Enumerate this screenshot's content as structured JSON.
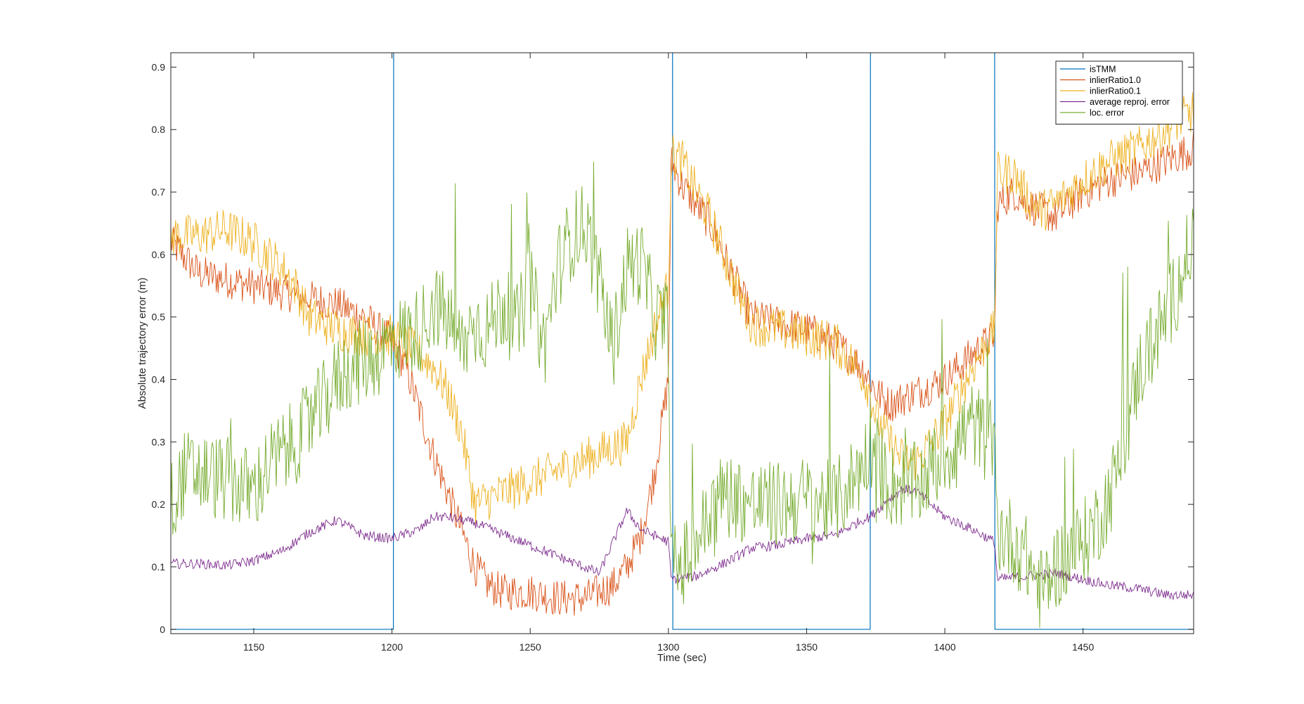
{
  "chart_data": {
    "type": "line",
    "title": "",
    "xlabel": "Time (sec)",
    "ylabel": "Absolute trajectory error (m)",
    "xlim": [
      1120,
      1490
    ],
    "ylim": [
      -0.007,
      0.923
    ],
    "xticks": [
      1150,
      1200,
      1250,
      1300,
      1350,
      1400,
      1450
    ],
    "yticks": [
      0,
      0.1,
      0.2,
      0.3,
      0.4,
      0.5,
      0.6,
      0.7,
      0.8,
      0.9
    ],
    "ytick_labels": [
      "0",
      "0.1",
      "0.2",
      "0.3",
      "0.4",
      "0.5",
      "0.6",
      "0.7",
      "0.8",
      "0.9"
    ],
    "grid": false,
    "legend_position": "top-right",
    "series": [
      {
        "name": "isTMM",
        "color": "#0072BD",
        "x": [
          1120,
          1200.5,
          1200.6,
          1301.5,
          1301.6,
          1373,
          1373.1,
          1418,
          1418.1,
          1490
        ],
        "y": [
          0,
          0,
          1,
          1,
          0,
          0,
          1,
          1,
          0,
          0
        ]
      },
      {
        "name": "inlierRatio1.0",
        "color": "#D95319",
        "x": [
          1120,
          1130,
          1140,
          1150,
          1160,
          1170,
          1180,
          1190,
          1200,
          1205,
          1210,
          1215,
          1220,
          1225,
          1230,
          1235,
          1240,
          1250,
          1260,
          1270,
          1275,
          1280,
          1285,
          1290,
          1295,
          1300,
          1301,
          1305,
          1310,
          1315,
          1320,
          1325,
          1330,
          1340,
          1350,
          1360,
          1370,
          1373,
          1375,
          1380,
          1390,
          1400,
          1410,
          1418,
          1419,
          1425,
          1430,
          1435,
          1440,
          1450,
          1460,
          1470,
          1480,
          1490
        ],
        "y": [
          0.62,
          0.57,
          0.56,
          0.55,
          0.54,
          0.53,
          0.52,
          0.5,
          0.46,
          0.42,
          0.35,
          0.28,
          0.22,
          0.16,
          0.1,
          0.07,
          0.06,
          0.06,
          0.05,
          0.05,
          0.06,
          0.07,
          0.1,
          0.15,
          0.25,
          0.4,
          0.75,
          0.71,
          0.68,
          0.65,
          0.6,
          0.55,
          0.5,
          0.49,
          0.48,
          0.46,
          0.42,
          0.4,
          0.38,
          0.36,
          0.38,
          0.4,
          0.44,
          0.47,
          0.68,
          0.7,
          0.68,
          0.67,
          0.66,
          0.7,
          0.72,
          0.73,
          0.75,
          0.77
        ]
      },
      {
        "name": "inlierRatio0.1",
        "color": "#EDB120",
        "x": [
          1120,
          1130,
          1140,
          1150,
          1160,
          1165,
          1170,
          1180,
          1190,
          1200,
          1210,
          1215,
          1220,
          1225,
          1230,
          1285,
          1290,
          1295,
          1300,
          1301,
          1305,
          1310,
          1315,
          1320,
          1325,
          1330,
          1340,
          1350,
          1360,
          1370,
          1373,
          1375,
          1380,
          1385,
          1390,
          1400,
          1410,
          1418,
          1419,
          1425,
          1430,
          1435,
          1440,
          1450,
          1460,
          1470,
          1480,
          1490
        ],
        "y": [
          0.63,
          0.63,
          0.64,
          0.62,
          0.58,
          0.55,
          0.5,
          0.48,
          0.47,
          0.47,
          0.44,
          0.42,
          0.38,
          0.32,
          0.2,
          0.3,
          0.4,
          0.48,
          0.55,
          0.76,
          0.75,
          0.7,
          0.66,
          0.6,
          0.54,
          0.49,
          0.48,
          0.47,
          0.46,
          0.41,
          0.38,
          0.34,
          0.3,
          0.27,
          0.27,
          0.33,
          0.42,
          0.48,
          0.73,
          0.73,
          0.69,
          0.67,
          0.68,
          0.72,
          0.75,
          0.77,
          0.8,
          0.83
        ]
      },
      {
        "name": "average reproj. error",
        "color": "#7E2F8E",
        "x": [
          1120,
          1130,
          1140,
          1150,
          1160,
          1170,
          1180,
          1190,
          1200,
          1210,
          1215,
          1220,
          1230,
          1275,
          1285,
          1290,
          1295,
          1300,
          1301,
          1310,
          1320,
          1330,
          1340,
          1350,
          1360,
          1370,
          1373,
          1380,
          1385,
          1390,
          1400,
          1410,
          1418,
          1419,
          1430,
          1440,
          1450,
          1460,
          1470,
          1480,
          1490
        ],
        "y": [
          0.105,
          0.105,
          0.102,
          0.11,
          0.125,
          0.155,
          0.175,
          0.15,
          0.145,
          0.16,
          0.18,
          0.18,
          0.17,
          0.09,
          0.19,
          0.16,
          0.15,
          0.14,
          0.08,
          0.085,
          0.105,
          0.13,
          0.135,
          0.145,
          0.15,
          0.175,
          0.18,
          0.21,
          0.225,
          0.22,
          0.18,
          0.16,
          0.14,
          0.08,
          0.085,
          0.09,
          0.08,
          0.07,
          0.065,
          0.055,
          0.055
        ]
      },
      {
        "name": "loc. error",
        "color": "#77AC30",
        "x": [
          1120,
          1125,
          1130,
          1140,
          1150,
          1155,
          1160,
          1165,
          1170,
          1175,
          1180,
          1185,
          1190,
          1195,
          1200,
          1205,
          1210,
          1215,
          1220,
          1225,
          1230,
          1235,
          1240,
          1245,
          1250,
          1255,
          1260,
          1265,
          1270,
          1275,
          1280,
          1285,
          1290,
          1295,
          1300,
          1301,
          1305,
          1310,
          1315,
          1320,
          1330,
          1340,
          1350,
          1360,
          1370,
          1373,
          1380,
          1390,
          1400,
          1410,
          1418,
          1419,
          1425,
          1430,
          1435,
          1440,
          1445,
          1450,
          1455,
          1460,
          1465,
          1470,
          1475,
          1480,
          1485,
          1490
        ],
        "y": [
          0.2,
          0.25,
          0.25,
          0.24,
          0.22,
          0.26,
          0.28,
          0.3,
          0.33,
          0.36,
          0.4,
          0.42,
          0.43,
          0.44,
          0.46,
          0.47,
          0.48,
          0.52,
          0.5,
          0.45,
          0.49,
          0.48,
          0.52,
          0.48,
          0.55,
          0.45,
          0.58,
          0.63,
          0.65,
          0.55,
          0.45,
          0.58,
          0.59,
          0.5,
          0.49,
          0.1,
          0.1,
          0.14,
          0.18,
          0.22,
          0.2,
          0.2,
          0.21,
          0.2,
          0.26,
          0.3,
          0.23,
          0.23,
          0.28,
          0.33,
          0.29,
          0.16,
          0.14,
          0.11,
          0.06,
          0.1,
          0.12,
          0.14,
          0.17,
          0.22,
          0.3,
          0.41,
          0.46,
          0.5,
          0.56,
          0.63
        ]
      }
    ]
  }
}
